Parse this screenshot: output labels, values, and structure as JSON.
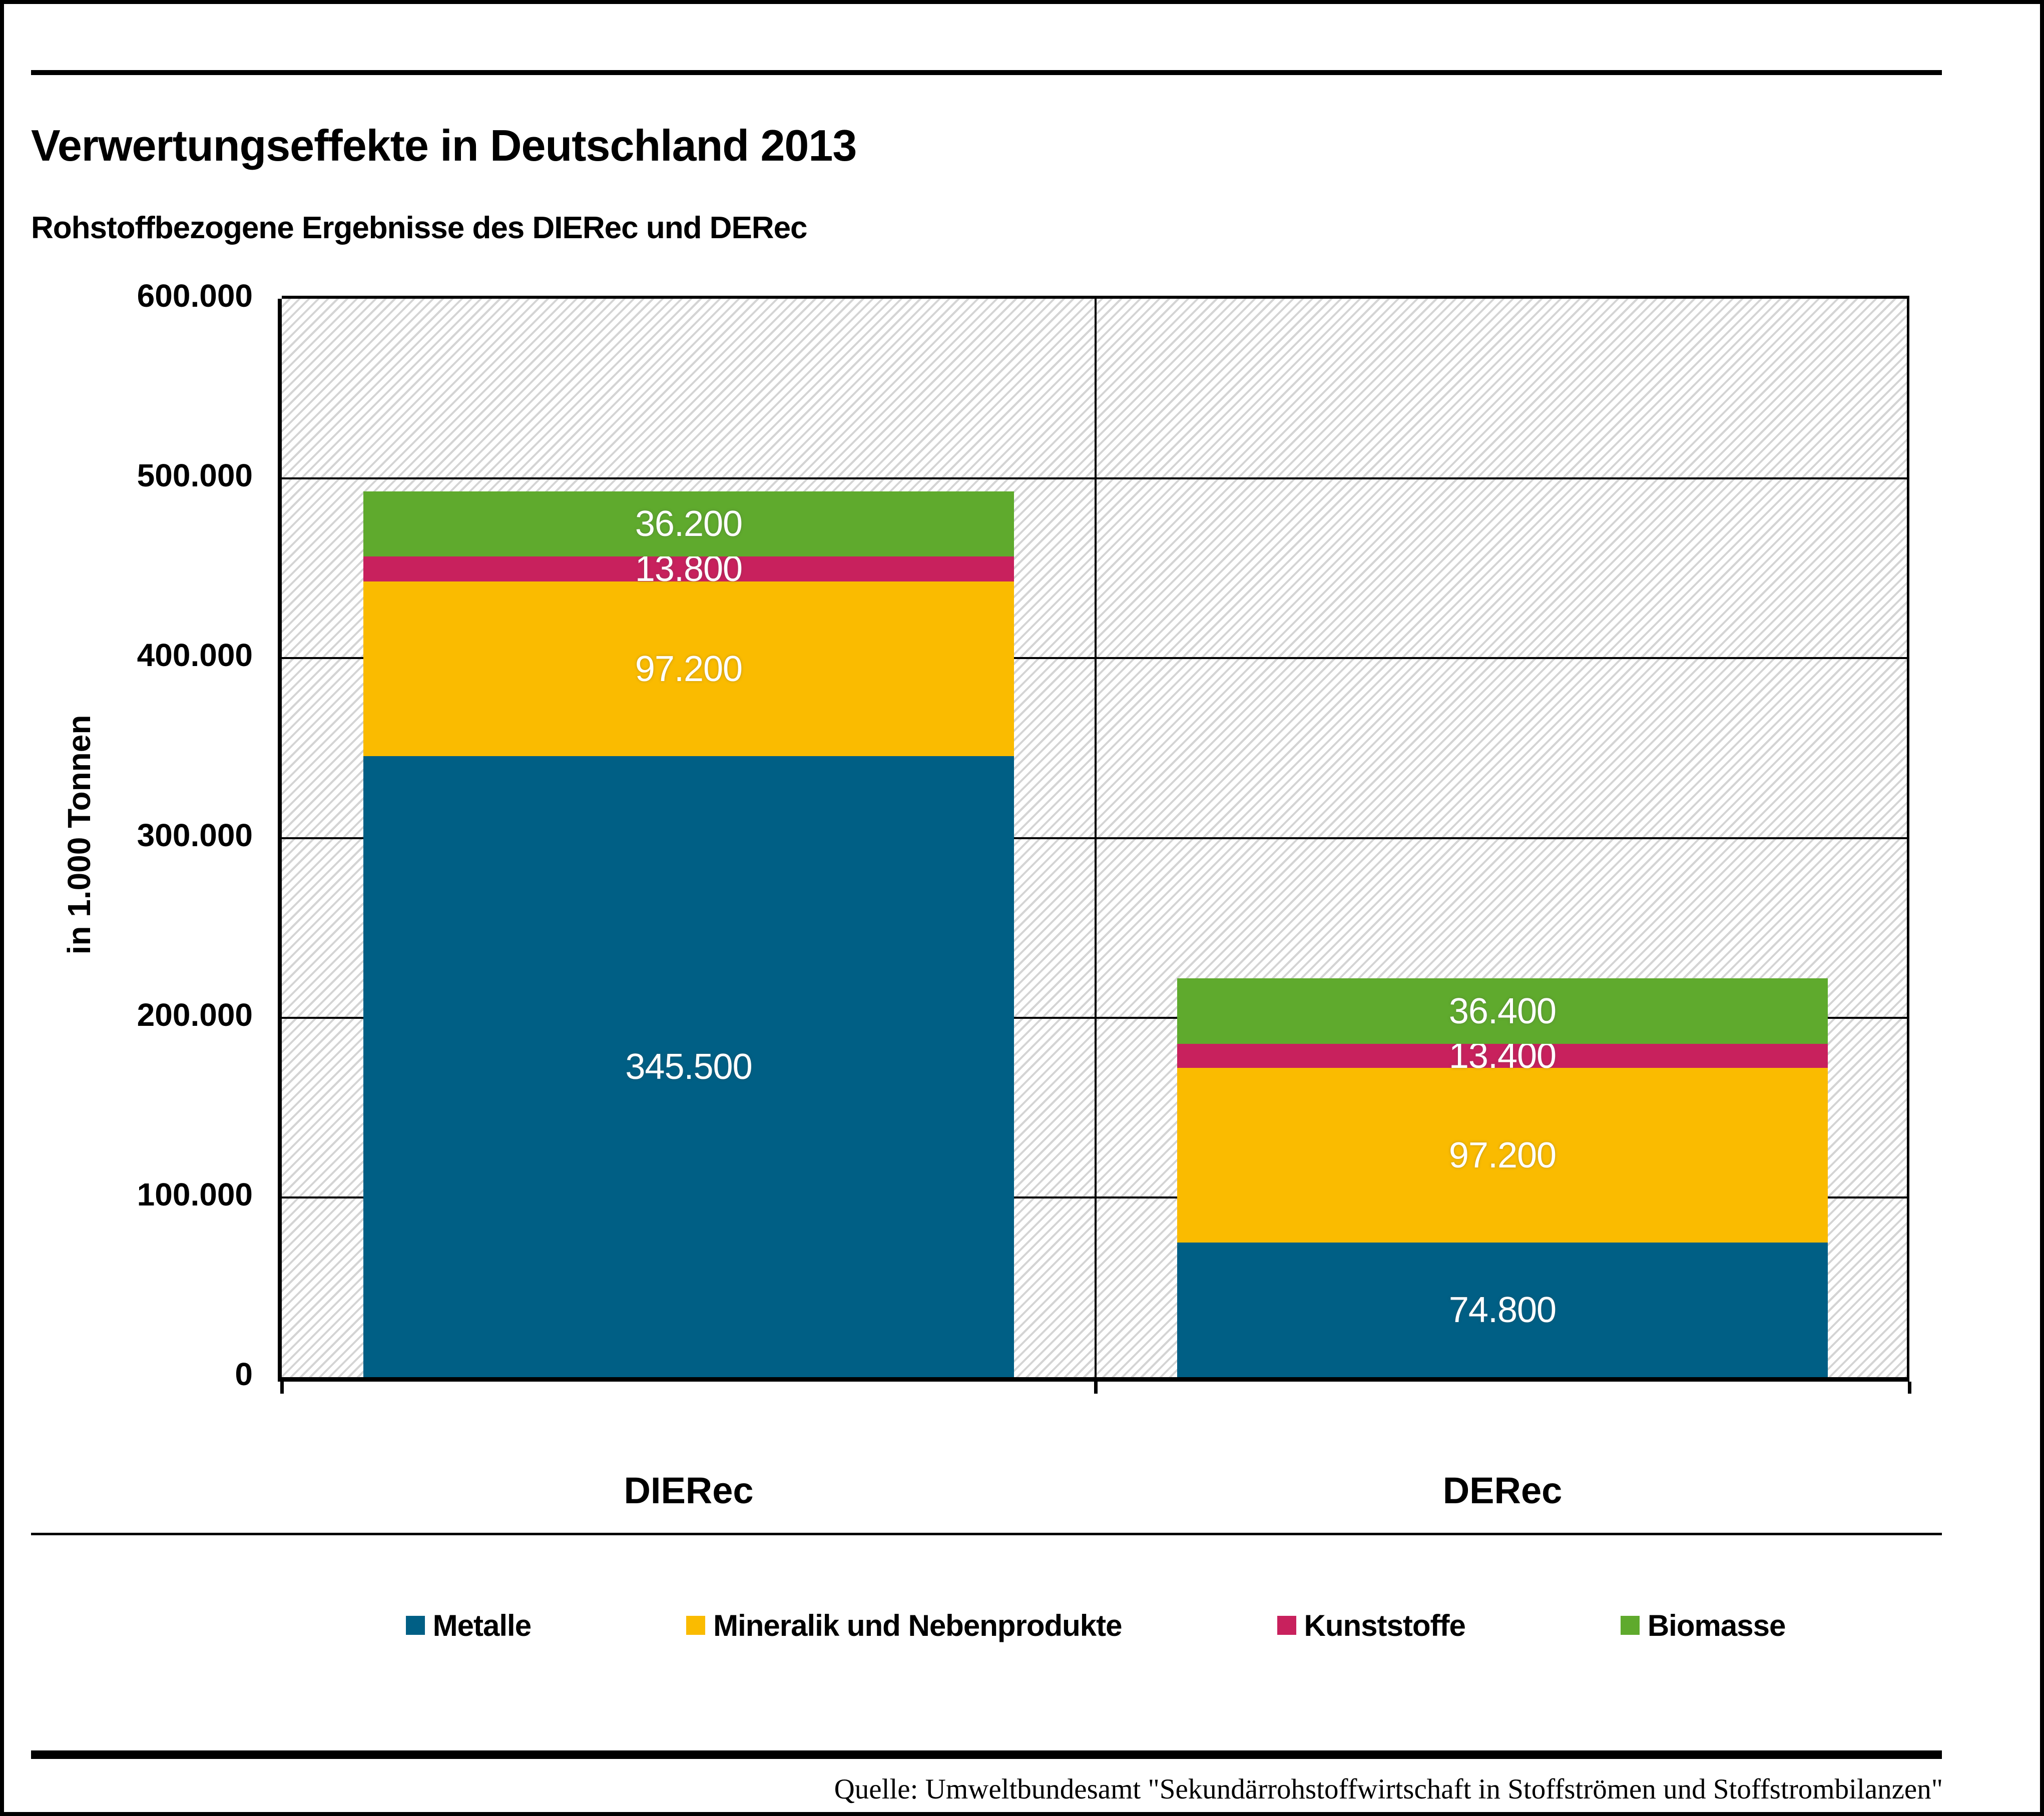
{
  "header": {
    "title": "Verwertungseffekte in Deutschland 2013",
    "subtitle": "Rohstoffbezogene Ergebnisse des DIERec und DERec"
  },
  "chart_data": {
    "type": "bar",
    "stacked": true,
    "title": "Verwertungseffekte in Deutschland 2013",
    "subtitle": "Rohstoffbezogene Ergebnisse des DIERec und DERec",
    "categories": [
      "DIERec",
      "DERec"
    ],
    "series": [
      {
        "name": "Metalle",
        "color": "#005F85",
        "values": [
          345500,
          74800
        ],
        "labels": [
          "345.500",
          "74.800"
        ]
      },
      {
        "name": "Mineralik und Nebenprodukte",
        "color": "#FABB00",
        "values": [
          97200,
          97200
        ],
        "labels": [
          "97.200",
          "97.200"
        ]
      },
      {
        "name": "Kunststoffe",
        "color": "#C8215D",
        "values": [
          13800,
          13400
        ],
        "labels": [
          "13.800",
          "13.400"
        ]
      },
      {
        "name": "Biomasse",
        "color": "#5FAA2D",
        "values": [
          36200,
          36400
        ],
        "labels": [
          "36.200",
          "36.400"
        ]
      }
    ],
    "totals": [
      492700,
      221800
    ],
    "xlabel": "",
    "ylabel": "in 1.000 Tonnen",
    "ylim": [
      0,
      600000
    ],
    "ytick_step": 100000,
    "yticks": [
      {
        "value": 0,
        "label": "0"
      },
      {
        "value": 100000,
        "label": "100.000"
      },
      {
        "value": 200000,
        "label": "200.000"
      },
      {
        "value": 300000,
        "label": "300.000"
      },
      {
        "value": 400000,
        "label": "400.000"
      },
      {
        "value": 500000,
        "label": "500.000"
      },
      {
        "value": 600000,
        "label": "600.000"
      }
    ],
    "grid": "horizontal",
    "legend_position": "bottom",
    "plot_background": {
      "pattern": "diagonal-hatch",
      "stripe_color": "#d4d4d4",
      "base_color": "#ffffff"
    }
  },
  "footer": {
    "source": "Quelle: Umweltbundesamt \"Sekundärrohstoffwirtschaft in Stoffströmen und Stoffstrombilanzen\""
  }
}
